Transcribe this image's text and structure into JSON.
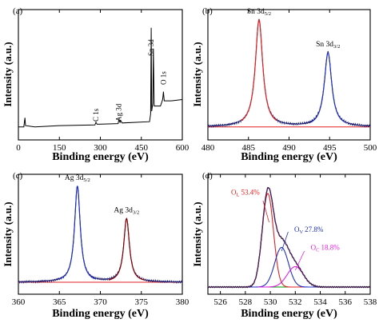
{
  "colors": {
    "black": "#000000",
    "red": "#e02020",
    "blue": "#2030c0",
    "darkblue": "#1a1a6e",
    "purple": "#5a2070",
    "magenta": "#e020e0",
    "green": "#009900",
    "brown": "#8b0000"
  },
  "chart_data": [
    {
      "panel": "(a)",
      "type": "line",
      "xlabel": "Binding energy (eV)",
      "ylabel": "Intensity (a.u.)",
      "xlim": [
        0,
        600
      ],
      "xticks": [
        "0",
        "150",
        "300",
        "450",
        "600"
      ],
      "series": [
        {
          "points": [
            [
              0,
              0.1
            ],
            [
              20,
              0.1
            ],
            [
              24,
              0.17
            ],
            [
              26,
              0.11
            ],
            [
              60,
              0.1
            ],
            [
              150,
              0.11
            ],
            [
              280,
              0.115
            ],
            [
              284,
              0.135
            ],
            [
              288,
              0.12
            ],
            [
              365,
              0.125
            ],
            [
              368,
              0.155
            ],
            [
              372,
              0.135
            ],
            [
              374,
              0.15
            ],
            [
              380,
              0.13
            ],
            [
              480,
              0.14
            ],
            [
              484,
              0.2
            ],
            [
              486,
              0.86
            ],
            [
              488,
              0.22
            ],
            [
              492,
              0.28
            ],
            [
              494,
              0.7
            ],
            [
              497,
              0.26
            ],
            [
              520,
              0.26
            ],
            [
              528,
              0.31
            ],
            [
              531,
              0.37
            ],
            [
              534,
              0.3
            ],
            [
              560,
              0.3
            ],
            [
              600,
              0.31
            ]
          ]
        }
      ],
      "annotations": [
        {
          "text": "C 1s",
          "x": 284
        },
        {
          "text": "Ag 3d",
          "x": 368
        },
        {
          "text": "Sn 3d",
          "x": 486
        },
        {
          "text": "O 1s",
          "x": 531
        }
      ]
    },
    {
      "panel": "(b)",
      "type": "line",
      "xlabel": "Binding energy (eV)",
      "ylabel": "Intensity (a.u.)",
      "xlim": [
        480,
        500
      ],
      "xticks": [
        "480",
        "485",
        "490",
        "495",
        "500"
      ],
      "peaks": [
        {
          "label": "Sn 3d",
          "sub": "5/2",
          "center": 486.3,
          "height": 0.82
        },
        {
          "label": "Sn 3d",
          "sub": "3/2",
          "center": 494.8,
          "height": 0.57
        }
      ]
    },
    {
      "panel": "(c)",
      "type": "line",
      "xlabel": "Binding energy (eV)",
      "ylabel": "Intensity (a.u.)",
      "xlim": [
        360,
        380
      ],
      "xticks": [
        "360",
        "365",
        "370",
        "375",
        "380"
      ],
      "peaks": [
        {
          "label": "Ag 3d",
          "sub": "5/2",
          "center": 367.2,
          "height": 0.8
        },
        {
          "label": "Ag 3d",
          "sub": "3/2",
          "center": 373.2,
          "height": 0.53
        }
      ]
    },
    {
      "panel": "(d)",
      "type": "line",
      "xlabel": "Binding energy (eV)",
      "ylabel": "Intensity (a.u.)",
      "xlim": [
        525,
        538
      ],
      "xticks": [
        "526",
        "528",
        "530",
        "532",
        "534",
        "536",
        "538"
      ],
      "components": [
        {
          "label": "O",
          "sub": "L",
          "value": "53.4%",
          "center": 529.8,
          "height": 0.78,
          "color": "#e02020"
        },
        {
          "label": "O",
          "sub": "V",
          "value": "27.8%",
          "center": 530.9,
          "height": 0.33,
          "color": "#2030c0"
        },
        {
          "label": "O",
          "sub": "C",
          "value": "18.8%",
          "center": 532.0,
          "height": 0.17,
          "color": "#e020e0"
        }
      ]
    }
  ]
}
